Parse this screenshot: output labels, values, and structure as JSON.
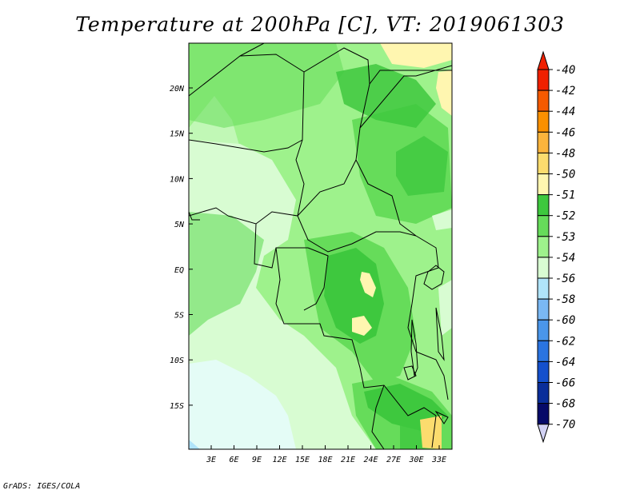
{
  "title": "Temperature at 200hPa [C], VT: 2019061303",
  "credit": "GrADS: IGES/COLA",
  "map": {
    "lat_labels": [
      "20N",
      "15N",
      "10N",
      "5N",
      "EQ",
      "5S",
      "10S",
      "15S"
    ],
    "lon_labels": [
      "3E",
      "6E",
      "9E",
      "12E",
      "15E",
      "18E",
      "21E",
      "24E",
      "27E",
      "30E",
      "33E"
    ]
  },
  "colorbar": {
    "labels": [
      "-40",
      "-42",
      "-44",
      "-46",
      "-48",
      "-50",
      "-51",
      "-52",
      "-53",
      "-54",
      "-56",
      "-58",
      "-60",
      "-62",
      "-64",
      "-66",
      "-68",
      "-70"
    ],
    "colors": [
      "#f02000",
      "#f55a00",
      "#fa9000",
      "#fbb43c",
      "#fcdc6e",
      "#fff6b0",
      "#3ec83e",
      "#66dc5a",
      "#9ef28c",
      "#d8fcd2",
      "#b0e4fa",
      "#7ab8f4",
      "#4a96ea",
      "#2a74e0",
      "#1450cc",
      "#0a2e9a",
      "#060a68",
      "#d2d2f4"
    ]
  }
}
